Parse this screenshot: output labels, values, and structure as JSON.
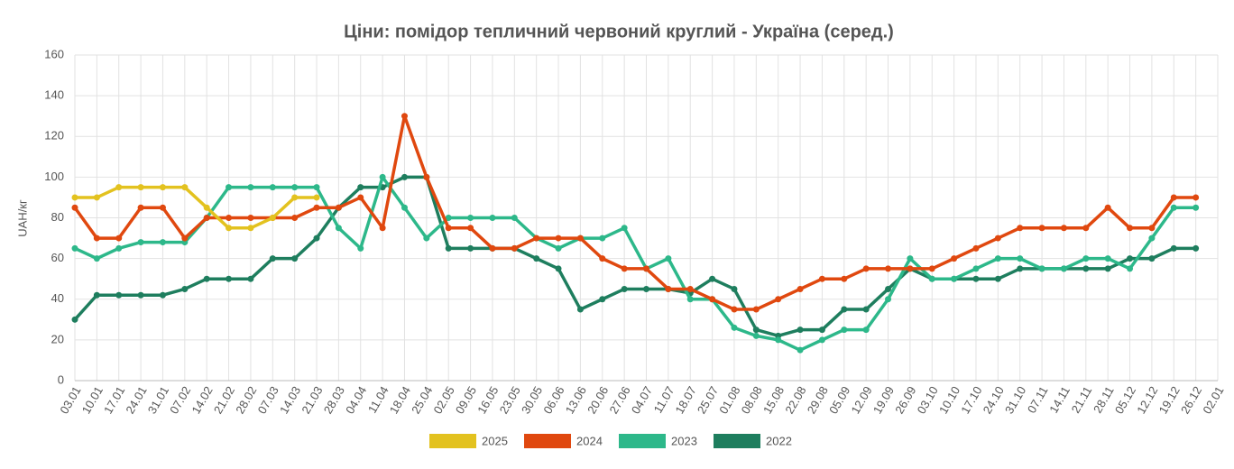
{
  "chart_data": {
    "type": "line",
    "title": "Ціни: помідор тепличний червоний круглий - Україна (серед.)",
    "y_label": "UAH/кг",
    "categories": [
      "03.01",
      "10.01",
      "17.01",
      "24.01",
      "31.01",
      "07.02",
      "14.02",
      "21.02",
      "28.02",
      "07.03",
      "14.03",
      "21.03",
      "28.03",
      "04.04",
      "11.04",
      "18.04",
      "25.04",
      "02.05",
      "09.05",
      "16.05",
      "23.05",
      "30.05",
      "06.06",
      "13.06",
      "20.06",
      "27.06",
      "04.07",
      "11.07",
      "18.07",
      "25.07",
      "01.08",
      "08.08",
      "15.08",
      "22.08",
      "29.08",
      "05.09",
      "12.09",
      "19.09",
      "26.09",
      "03.10",
      "10.10",
      "17.10",
      "24.10",
      "31.10",
      "07.11",
      "14.11",
      "21.11",
      "28.11",
      "05.12",
      "12.12",
      "19.12",
      "26.12",
      "02.01"
    ],
    "series": [
      {
        "name": "2025",
        "color": "#e3c21f",
        "values": [
          90,
          90,
          95,
          95,
          95,
          95,
          85,
          75,
          75,
          80,
          90,
          90,
          null,
          null,
          null,
          null,
          null,
          null,
          null,
          null,
          null,
          null,
          null,
          null,
          null,
          null,
          null,
          null,
          null,
          null,
          null,
          null,
          null,
          null,
          null,
          null,
          null,
          null,
          null,
          null,
          null,
          null,
          null,
          null,
          null,
          null,
          null,
          null,
          null,
          null,
          null,
          null,
          null
        ]
      },
      {
        "name": "2024",
        "color": "#e0480f",
        "values": [
          85,
          70,
          70,
          85,
          85,
          70,
          80,
          80,
          80,
          80,
          80,
          85,
          85,
          90,
          75,
          130,
          100,
          75,
          75,
          65,
          65,
          70,
          70,
          70,
          60,
          55,
          55,
          45,
          45,
          40,
          35,
          35,
          40,
          45,
          50,
          50,
          55,
          55,
          55,
          55,
          60,
          65,
          70,
          75,
          75,
          75,
          75,
          85,
          75,
          75,
          90,
          90,
          null
        ]
      },
      {
        "name": "2023",
        "color": "#2db88a",
        "values": [
          65,
          60,
          65,
          68,
          68,
          68,
          80,
          95,
          95,
          95,
          95,
          95,
          75,
          65,
          100,
          85,
          70,
          80,
          80,
          80,
          80,
          70,
          65,
          70,
          70,
          75,
          55,
          60,
          40,
          40,
          26,
          22,
          20,
          15,
          20,
          25,
          25,
          40,
          60,
          50,
          50,
          55,
          60,
          60,
          55,
          55,
          60,
          60,
          55,
          70,
          85,
          85,
          null
        ]
      },
      {
        "name": "2022",
        "color": "#1e7e5e",
        "values": [
          30,
          42,
          42,
          42,
          42,
          45,
          50,
          50,
          50,
          60,
          60,
          70,
          85,
          95,
          95,
          100,
          100,
          65,
          65,
          65,
          65,
          60,
          55,
          35,
          40,
          45,
          45,
          45,
          43,
          50,
          45,
          25,
          22,
          25,
          25,
          35,
          35,
          45,
          55,
          50,
          50,
          50,
          50,
          55,
          55,
          55,
          55,
          55,
          60,
          60,
          65,
          65,
          null
        ]
      }
    ],
    "ylim": [
      0,
      160
    ],
    "yticks": [
      0,
      20,
      40,
      60,
      80,
      100,
      120,
      140,
      160
    ],
    "grid": true,
    "legend": "bottom"
  }
}
